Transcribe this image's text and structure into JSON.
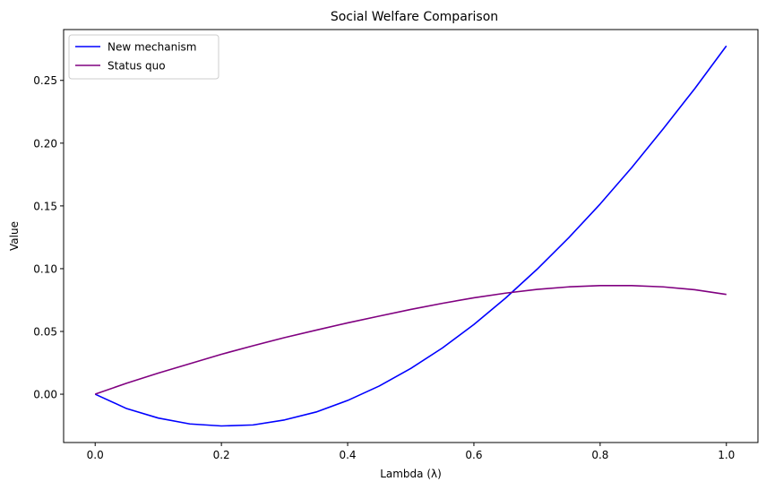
{
  "chart_data": {
    "type": "line",
    "title": "Social Welfare Comparison",
    "xlabel": "Lambda (λ)",
    "ylabel": "Value",
    "xlim": [
      -0.05,
      1.05
    ],
    "ylim": [
      -0.0385,
      0.2905
    ],
    "xticks": [
      0.0,
      0.2,
      0.4,
      0.6,
      0.8,
      1.0
    ],
    "xtick_labels": [
      "0.0",
      "0.2",
      "0.4",
      "0.6",
      "0.8",
      "1.0"
    ],
    "yticks": [
      0.0,
      0.05,
      0.1,
      0.15,
      0.2,
      0.25
    ],
    "ytick_labels": [
      "0.00",
      "0.05",
      "0.10",
      "0.15",
      "0.20",
      "0.25"
    ],
    "grid": false,
    "legend_position": "top-left",
    "x": [
      0.0,
      0.05,
      0.1,
      0.15,
      0.2,
      0.25,
      0.3,
      0.35,
      0.4,
      0.45,
      0.5,
      0.55,
      0.6,
      0.65,
      0.7,
      0.75,
      0.8,
      0.85,
      0.9,
      0.95,
      1.0
    ],
    "series": [
      {
        "name": "New mechanism",
        "color": "#0000ff",
        "values": [
          0.0,
          -0.0115,
          -0.019,
          -0.0237,
          -0.0253,
          -0.0245,
          -0.0205,
          -0.0142,
          -0.005,
          0.0065,
          0.0205,
          0.0368,
          0.0555,
          0.0765,
          0.0995,
          0.1245,
          0.1515,
          0.1805,
          0.2115,
          0.2435,
          0.2775
        ]
      },
      {
        "name": "Status quo",
        "color": "#800080",
        "values": [
          0.0,
          0.0088,
          0.0168,
          0.0243,
          0.0318,
          0.0386,
          0.0451,
          0.051,
          0.0568,
          0.0622,
          0.0675,
          0.0724,
          0.0768,
          0.0805,
          0.0835,
          0.0855,
          0.0865,
          0.0865,
          0.0855,
          0.0832,
          0.0795
        ]
      }
    ]
  }
}
